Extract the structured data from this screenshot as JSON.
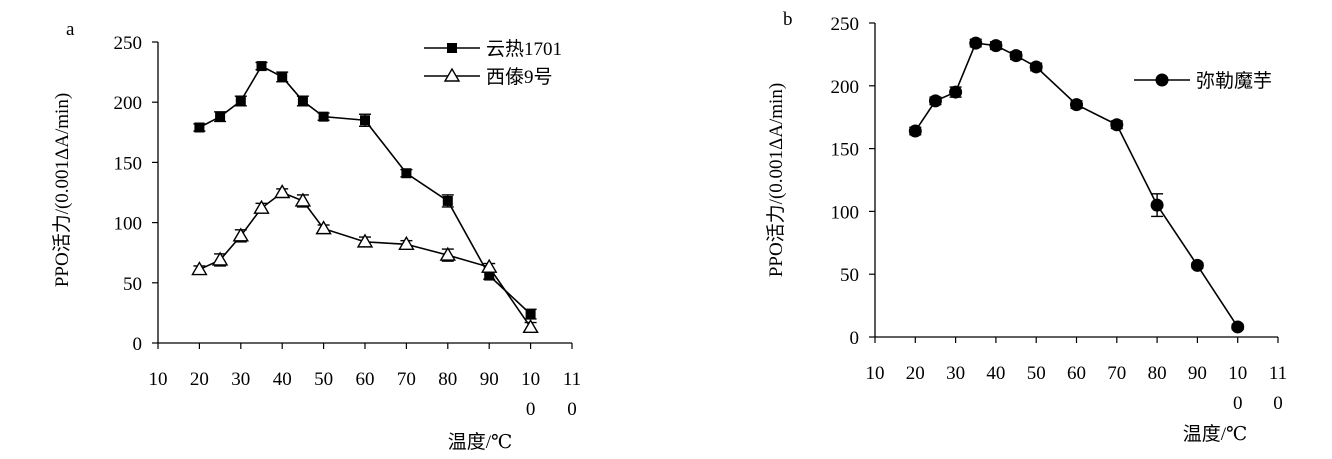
{
  "chart_data": [
    {
      "type": "line",
      "panel_label": "a",
      "xlabel": "温度/℃",
      "ylabel": "PPO活力/(0.001ΔA/min)",
      "x_ticks": [
        10,
        20,
        30,
        40,
        50,
        60,
        70,
        80,
        90,
        100,
        110
      ],
      "x_tick_labels": [
        "10",
        "20",
        "30",
        "40",
        "50",
        "60",
        "70",
        "80",
        "90",
        "10\n0",
        "11\n0"
      ],
      "y_ticks": [
        0,
        50,
        100,
        150,
        200,
        250
      ],
      "y_tick_labels": [
        "0",
        "50",
        "100",
        "150",
        "200",
        "250"
      ],
      "ylim": [
        0,
        250
      ],
      "legend_position": "top-right",
      "x": [
        20,
        25,
        30,
        35,
        40,
        45,
        50,
        60,
        70,
        80,
        90,
        100
      ],
      "series": [
        {
          "name": "云热1701",
          "marker": "filled-square",
          "values": [
            179,
            188,
            201,
            230,
            221,
            201,
            188,
            185,
            141,
            118,
            56,
            24
          ],
          "errors": [
            3,
            4,
            4,
            3,
            4,
            4,
            3,
            5,
            3,
            5,
            3,
            4
          ]
        },
        {
          "name": "西傣9号",
          "marker": "open-triangle",
          "values": [
            61,
            69,
            89,
            112,
            125,
            118,
            95,
            84,
            82,
            73,
            63,
            13
          ],
          "errors": [
            3,
            5,
            5,
            4,
            3,
            5,
            3,
            4,
            3,
            5,
            3,
            4
          ]
        }
      ]
    },
    {
      "type": "line",
      "panel_label": "b",
      "xlabel": "温度/℃",
      "ylabel": "PPO活力/(0.001ΔA/min)",
      "x_ticks": [
        10,
        20,
        30,
        40,
        50,
        60,
        70,
        80,
        90,
        100,
        110
      ],
      "x_tick_labels": [
        "10",
        "20",
        "30",
        "40",
        "50",
        "60",
        "70",
        "80",
        "90",
        "10\n0",
        "11\n0"
      ],
      "y_ticks": [
        0,
        50,
        100,
        150,
        200,
        250
      ],
      "y_tick_labels": [
        "0",
        "50",
        "100",
        "150",
        "200",
        "250"
      ],
      "ylim": [
        0,
        250
      ],
      "legend_position": "top-right",
      "x": [
        20,
        25,
        30,
        35,
        40,
        45,
        50,
        60,
        70,
        80,
        90,
        100
      ],
      "series": [
        {
          "name": "弥勒魔芋",
          "marker": "filled-circle",
          "values": [
            164,
            188,
            195,
            234,
            232,
            224,
            215,
            185,
            169,
            105,
            57,
            8
          ],
          "errors": [
            3,
            3,
            4,
            3,
            3,
            3,
            3,
            3,
            3,
            9,
            2,
            2
          ]
        }
      ]
    }
  ]
}
